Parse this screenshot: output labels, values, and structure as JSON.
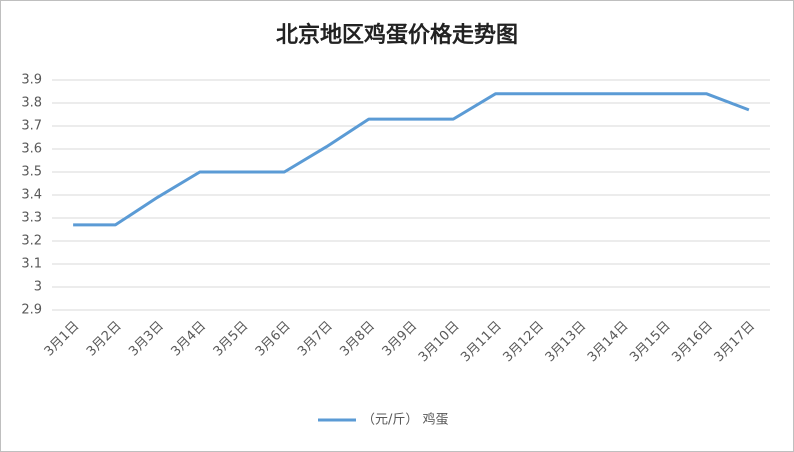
{
  "chart_data": {
    "type": "line",
    "title": "北京地区鸡蛋价格走势图",
    "categories": [
      "3月1日",
      "3月2日",
      "3月3日",
      "3月4日",
      "3月5日",
      "3月6日",
      "3月7日",
      "3月8日",
      "3月9日",
      "3月10日",
      "3月11日",
      "3月12日",
      "3月13日",
      "3月14日",
      "3月15日",
      "3月16日",
      "3月17日"
    ],
    "series": [
      {
        "name": "（元/斤） 鸡蛋",
        "color": "#5b9bd5",
        "values": [
          3.27,
          3.27,
          3.39,
          3.5,
          3.5,
          3.5,
          3.61,
          3.73,
          3.73,
          3.73,
          3.84,
          3.84,
          3.84,
          3.84,
          3.84,
          3.84,
          3.77
        ]
      }
    ],
    "ylim": [
      2.9,
      3.9
    ],
    "yticks": [
      2.9,
      3,
      3.1,
      3.2,
      3.3,
      3.4,
      3.5,
      3.6,
      3.7,
      3.8,
      3.9
    ],
    "grid": true,
    "legend": "bottom"
  }
}
